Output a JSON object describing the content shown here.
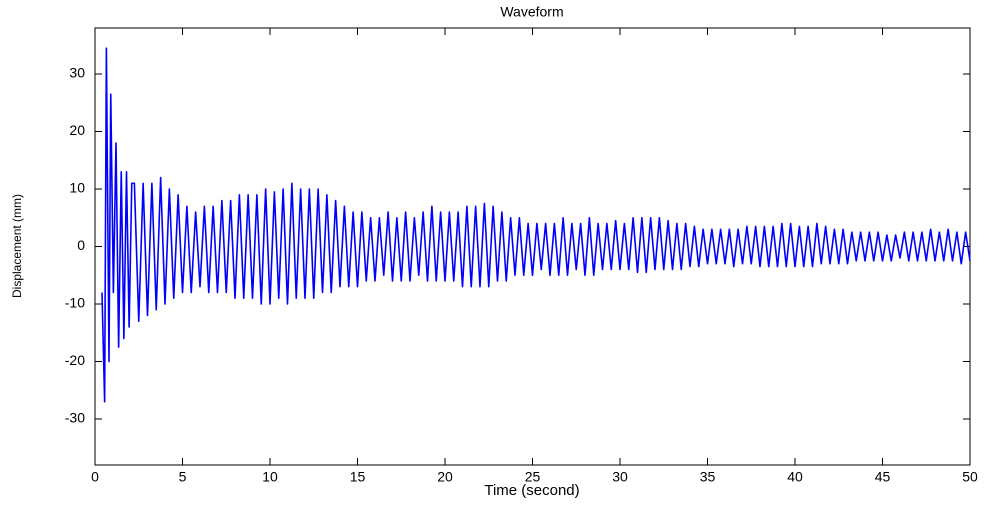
{
  "chart_data": {
    "type": "line",
    "title": "Waveform",
    "x_label": "Time (second)",
    "y_label": "Displacement (mm)",
    "color": "#0000ff",
    "grid": false,
    "xlim": [
      0,
      50
    ],
    "xticks": [
      0,
      5,
      10,
      15,
      20,
      25,
      30,
      35,
      40,
      45,
      50
    ],
    "ylim": [
      -38,
      38
    ],
    "yticks": [
      -30,
      -20,
      -10,
      0,
      10,
      20,
      30
    ],
    "x": [
      0.4,
      0.55,
      0.65,
      0.8,
      0.9,
      1.05,
      1.2,
      1.35,
      1.5,
      1.65,
      1.8,
      1.95,
      2.1,
      2.25,
      2.5,
      2.75,
      3.0,
      3.25,
      3.5,
      3.75,
      4.0,
      4.25,
      4.5,
      4.75,
      5.0,
      5.25,
      5.5,
      5.75,
      6.0,
      6.25,
      6.5,
      6.75,
      7.0,
      7.25,
      7.5,
      7.75,
      8.0,
      8.25,
      8.5,
      8.75,
      9.0,
      9.25,
      9.5,
      9.75,
      10.0,
      10.25,
      10.5,
      10.75,
      11.0,
      11.25,
      11.5,
      11.75,
      12.0,
      12.25,
      12.5,
      12.75,
      13.0,
      13.25,
      13.5,
      13.75,
      14.0,
      14.25,
      14.5,
      14.75,
      15.0,
      15.25,
      15.5,
      15.75,
      16.0,
      16.25,
      16.5,
      16.75,
      17.0,
      17.25,
      17.5,
      17.75,
      18.0,
      18.25,
      18.5,
      18.75,
      19.0,
      19.25,
      19.5,
      19.75,
      20.0,
      20.25,
      20.5,
      20.75,
      21.0,
      21.25,
      21.5,
      21.75,
      22.0,
      22.25,
      22.5,
      22.75,
      23.0,
      23.25,
      23.5,
      23.75,
      24.0,
      24.25,
      24.5,
      24.75,
      25.0,
      25.25,
      25.5,
      25.75,
      26.0,
      26.25,
      26.5,
      26.75,
      27.0,
      27.25,
      27.5,
      27.75,
      28.0,
      28.25,
      28.5,
      28.75,
      29.0,
      29.25,
      29.5,
      29.75,
      30.0,
      30.25,
      30.5,
      30.75,
      31.0,
      31.25,
      31.5,
      31.75,
      32.0,
      32.25,
      32.5,
      32.75,
      33.0,
      33.25,
      33.5,
      33.75,
      34.0,
      34.25,
      34.5,
      34.75,
      35.0,
      35.25,
      35.5,
      35.75,
      36.0,
      36.25,
      36.5,
      36.75,
      37.0,
      37.25,
      37.5,
      37.75,
      38.0,
      38.25,
      38.5,
      38.75,
      39.0,
      39.25,
      39.5,
      39.75,
      40.0,
      40.25,
      40.5,
      40.75,
      41.0,
      41.25,
      41.5,
      41.75,
      42.0,
      42.25,
      42.5,
      42.75,
      43.0,
      43.25,
      43.5,
      43.75,
      44.0,
      44.25,
      44.5,
      44.75,
      45.0,
      45.25,
      45.5,
      45.75,
      46.0,
      46.25,
      46.5,
      46.75,
      47.0,
      47.25,
      47.5,
      47.75,
      48.0,
      48.25,
      48.5,
      48.75,
      49.0,
      49.25,
      49.5,
      49.75,
      50.0
    ],
    "values": [
      -8,
      -27,
      34.5,
      -20,
      26.5,
      -8,
      18,
      -17.5,
      13,
      -16,
      13,
      -14,
      11,
      11,
      -13,
      11,
      -12,
      11,
      -11,
      12,
      -10,
      10,
      -9,
      9,
      -8,
      7,
      -8,
      6,
      -7,
      7,
      -8,
      7,
      -8,
      8,
      -8,
      8,
      -9,
      9,
      -9,
      9,
      -9,
      9,
      -10,
      10,
      -10,
      9.5,
      -9,
      10,
      -10,
      11,
      -9,
      10,
      -9,
      10,
      -9,
      10,
      -8,
      9,
      -8,
      8,
      -7,
      7,
      -7,
      6,
      -7,
      6,
      -6,
      5,
      -6,
      5,
      -5,
      6,
      -6,
      5,
      -6,
      6,
      -6,
      5,
      -5,
      6,
      -6,
      7,
      -6,
      6,
      -6,
      6,
      -6,
      6,
      -7,
      7,
      -7,
      7,
      -7,
      7.5,
      -7,
      7,
      -6,
      6,
      -6,
      5,
      -5,
      5,
      -5,
      4,
      -5,
      4,
      -4,
      4,
      -5,
      4,
      -5,
      5,
      -5,
      4,
      -4,
      4,
      -5,
      5,
      -5,
      4,
      -4,
      4,
      -4,
      4.5,
      -4,
      4,
      -4,
      5,
      -4.5,
      5,
      -4.5,
      5,
      -4,
      5,
      -4,
      4.5,
      -4,
      4,
      -4,
      4,
      -3.5,
      3.5,
      -3.5,
      3,
      -3,
      3,
      -3,
      3,
      -3,
      3,
      -3.5,
      3,
      -3,
      3.5,
      -3,
      3.5,
      -3.5,
      3.5,
      -3.5,
      3.5,
      -3.5,
      4,
      -3.5,
      4,
      -3.5,
      3.5,
      -3.5,
      3.5,
      -3.5,
      4,
      -3,
      3.5,
      -3,
      3,
      -3,
      3,
      -3,
      2.5,
      -2.5,
      2.5,
      -2.5,
      2.5,
      -2.5,
      2.5,
      -2.5,
      2,
      -2.5,
      2,
      -2,
      2.5,
      -2.5,
      2.5,
      -2.5,
      2.5,
      -2.5,
      3,
      -2.5,
      2.5,
      -2.5,
      3,
      -2.5,
      2.5,
      -3,
      2.5,
      -2.5
    ]
  }
}
